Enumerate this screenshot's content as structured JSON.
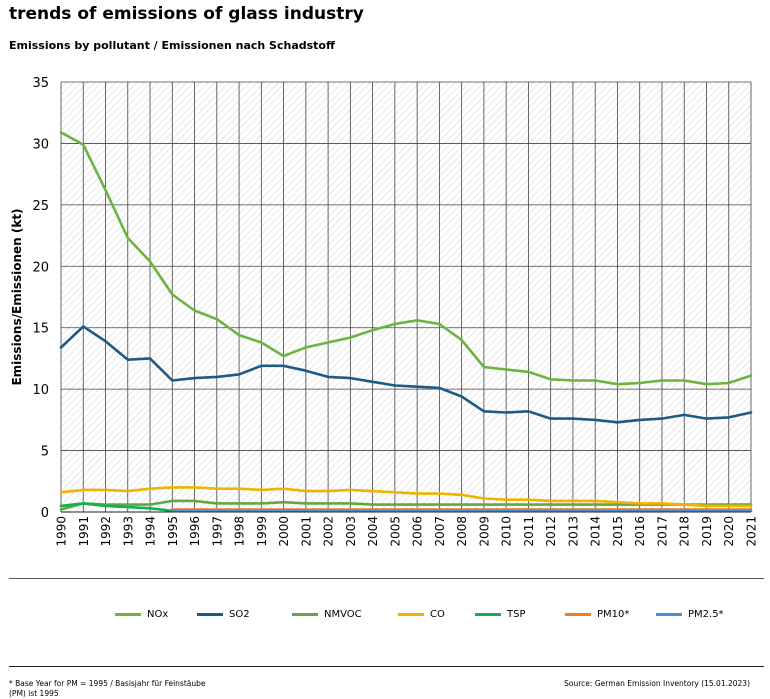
{
  "header": {
    "title": "trends of emissions of glass industry",
    "subtitle": "Emissions by pollutant / Emissionen nach Schadstoff"
  },
  "footer": {
    "footnote": "* Base Year for PM = 1995 / Basisjahr für Feinstäube (PM) ist 1995",
    "source": "Source: German Emission Inventory (15.01.2023)"
  },
  "chart_data": {
    "type": "line",
    "title": "trends of emissions of glass industry",
    "subtitle": "Emissions by pollutant / Emissionen nach Schadstoff",
    "xlabel": "",
    "ylabel": "Emissions/Emissionen (kt)",
    "ylim": [
      0,
      35
    ],
    "yticks": [
      0,
      5,
      10,
      15,
      20,
      25,
      30,
      35
    ],
    "grid": true,
    "legend_position": "bottom",
    "x": [
      "1990",
      "1991",
      "1992",
      "1993",
      "1994",
      "1995",
      "1996",
      "1997",
      "1998",
      "1999",
      "2000",
      "2001",
      "2002",
      "2003",
      "2004",
      "2005",
      "2006",
      "2007",
      "2008",
      "2009",
      "2010",
      "2011",
      "2012",
      "2013",
      "2014",
      "2015",
      "2016",
      "2017",
      "2018",
      "2019",
      "2020",
      "2021"
    ],
    "series": [
      {
        "name": "NOx",
        "color": "#6db33f",
        "values": [
          30.9,
          29.9,
          26.2,
          22.3,
          20.4,
          17.7,
          16.4,
          15.7,
          14.4,
          13.8,
          12.7,
          13.4,
          13.8,
          14.2,
          14.8,
          15.3,
          15.6,
          15.3,
          14.0,
          11.8,
          11.6,
          11.4,
          10.8,
          10.7,
          10.7,
          10.4,
          10.5,
          10.7,
          10.7,
          10.4,
          10.5,
          11.1
        ]
      },
      {
        "name": "SO2",
        "color": "#1d5a85",
        "values": [
          13.4,
          15.1,
          13.9,
          12.4,
          12.5,
          10.7,
          10.9,
          11.0,
          11.2,
          11.9,
          11.9,
          11.5,
          11.0,
          10.9,
          10.6,
          10.3,
          10.2,
          10.1,
          9.4,
          8.2,
          8.1,
          8.2,
          7.6,
          7.6,
          7.5,
          7.3,
          7.5,
          7.6,
          7.9,
          7.6,
          7.7,
          8.1
        ]
      },
      {
        "name": "NMVOC",
        "color": "#5fa845",
        "values": [
          0.2,
          0.7,
          0.6,
          0.6,
          0.6,
          0.9,
          0.9,
          0.7,
          0.7,
          0.7,
          0.8,
          0.7,
          0.7,
          0.7,
          0.6,
          0.6,
          0.6,
          0.6,
          0.6,
          0.6,
          0.6,
          0.6,
          0.6,
          0.6,
          0.6,
          0.6,
          0.6,
          0.6,
          0.6,
          0.6,
          0.6,
          0.6
        ]
      },
      {
        "name": "CO",
        "color": "#f0b400",
        "values": [
          1.6,
          1.8,
          1.8,
          1.7,
          1.9,
          2.0,
          2.0,
          1.9,
          1.9,
          1.8,
          1.9,
          1.7,
          1.7,
          1.8,
          1.7,
          1.6,
          1.5,
          1.5,
          1.4,
          1.1,
          1.0,
          1.0,
          0.9,
          0.9,
          0.9,
          0.8,
          0.7,
          0.7,
          0.6,
          0.5,
          0.5,
          0.5
        ]
      },
      {
        "name": "TSP",
        "color": "#12b052",
        "values": [
          0.5,
          0.7,
          0.5,
          0.4,
          0.3,
          0.1,
          null,
          null,
          null,
          null,
          null,
          null,
          null,
          null,
          null,
          null,
          null,
          null,
          null,
          null,
          null,
          null,
          null,
          null,
          null,
          null,
          null,
          null,
          null,
          null,
          null,
          null
        ]
      },
      {
        "name": "PM10*",
        "color": "#ef7d22",
        "values": [
          null,
          null,
          null,
          null,
          null,
          0.2,
          0.2,
          0.2,
          0.2,
          0.2,
          0.2,
          0.2,
          0.2,
          0.2,
          0.2,
          0.2,
          0.2,
          0.2,
          0.2,
          0.2,
          0.2,
          0.2,
          0.2,
          0.2,
          0.2,
          0.2,
          0.2,
          0.2,
          0.2,
          0.2,
          0.2,
          0.2
        ]
      },
      {
        "name": "PM2.5*",
        "color": "#4a90d9",
        "values": [
          null,
          null,
          null,
          null,
          null,
          0.1,
          0.1,
          0.1,
          0.1,
          0.1,
          0.1,
          0.1,
          0.1,
          0.1,
          0.1,
          0.1,
          0.1,
          0.1,
          0.1,
          0.1,
          0.1,
          0.1,
          0.1,
          0.1,
          0.1,
          0.1,
          0.1,
          0.1,
          0.1,
          0.1,
          0.1,
          0.1
        ]
      }
    ]
  }
}
